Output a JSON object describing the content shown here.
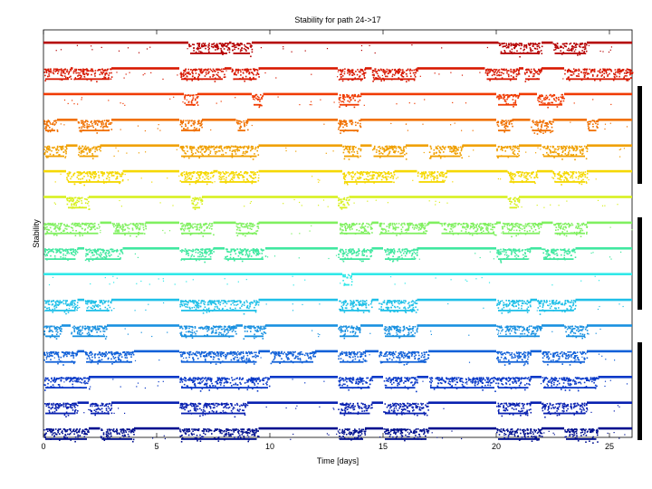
{
  "chart_data": {
    "type": "scatter",
    "title": "Stability for path 24->17",
    "xlabel": "Time [days]",
    "ylabel": "Stability",
    "xlim": [
      0,
      26
    ],
    "x_ticks": [
      0,
      5,
      10,
      15,
      20,
      25
    ],
    "x_tick_labels": [
      "0",
      "5",
      "10",
      "15",
      "20",
      "25"
    ],
    "grid": false,
    "legend": "none",
    "series": [
      {
        "color": "#b50000",
        "dropouts": [
          [
            6.4,
            8.2
          ],
          [
            8.3,
            9.2
          ],
          [
            20.1,
            22.0
          ],
          [
            22.5,
            24.0
          ]
        ]
      },
      {
        "color": "#d81800",
        "dropouts": [
          [
            0.0,
            1.2
          ],
          [
            1.3,
            3.0
          ],
          [
            6.0,
            8.0
          ],
          [
            8.3,
            9.5
          ],
          [
            13.0,
            14.2
          ],
          [
            14.5,
            16.5
          ],
          [
            19.5,
            21.0
          ],
          [
            21.2,
            22.0
          ],
          [
            23.0,
            26.0
          ]
        ]
      },
      {
        "color": "#f03a00",
        "dropouts": [
          [
            6.2,
            6.8
          ],
          [
            9.2,
            9.7
          ],
          [
            13.0,
            14.0
          ],
          [
            20.0,
            21.0
          ],
          [
            21.8,
            23.0
          ]
        ]
      },
      {
        "color": "#f07000",
        "dropouts": [
          [
            0.0,
            0.6
          ],
          [
            1.5,
            3.0
          ],
          [
            6.0,
            7.0
          ],
          [
            8.5,
            9.0
          ],
          [
            13.0,
            14.0
          ],
          [
            20.0,
            20.7
          ],
          [
            21.5,
            22.5
          ],
          [
            24.0,
            24.5
          ]
        ]
      },
      {
        "color": "#f0a000",
        "dropouts": [
          [
            0.0,
            1.0
          ],
          [
            1.5,
            2.5
          ],
          [
            6.0,
            9.5
          ],
          [
            13.2,
            14.0
          ],
          [
            14.5,
            16.0
          ],
          [
            17.0,
            18.5
          ],
          [
            20.0,
            21.0
          ],
          [
            22.0,
            24.0
          ]
        ]
      },
      {
        "color": "#f5d800",
        "dropouts": [
          [
            1.0,
            3.5
          ],
          [
            6.0,
            7.5
          ],
          [
            7.7,
            9.5
          ],
          [
            13.2,
            15.5
          ],
          [
            16.5,
            17.8
          ],
          [
            20.5,
            21.8
          ],
          [
            22.5,
            24.0
          ]
        ]
      },
      {
        "color": "#d8f020",
        "dropouts": [
          [
            1.0,
            2.0
          ],
          [
            6.5,
            7.0
          ],
          [
            13.0,
            13.5
          ],
          [
            20.5,
            21.0
          ]
        ]
      },
      {
        "color": "#80f060",
        "dropouts": [
          [
            0.0,
            2.5
          ],
          [
            3.0,
            4.5
          ],
          [
            6.0,
            7.5
          ],
          [
            8.5,
            9.5
          ],
          [
            13.0,
            14.5
          ],
          [
            14.8,
            17.0
          ],
          [
            17.5,
            20.0
          ],
          [
            20.2,
            22.0
          ],
          [
            22.5,
            24.0
          ]
        ]
      },
      {
        "color": "#40e8a0",
        "dropouts": [
          [
            0.0,
            1.5
          ],
          [
            1.8,
            3.5
          ],
          [
            6.0,
            7.5
          ],
          [
            8.0,
            9.8
          ],
          [
            13.0,
            14.5
          ],
          [
            15.0,
            16.5
          ],
          [
            20.0,
            21.5
          ],
          [
            22.0,
            23.5
          ]
        ]
      },
      {
        "color": "#30e8e8",
        "dropouts": [
          [
            13.2,
            13.6
          ]
        ]
      },
      {
        "color": "#20c0e8",
        "dropouts": [
          [
            0.0,
            1.5
          ],
          [
            1.8,
            3.0
          ],
          [
            6.0,
            9.5
          ],
          [
            13.0,
            14.5
          ],
          [
            14.8,
            16.5
          ],
          [
            20.0,
            21.5
          ],
          [
            21.8,
            23.5
          ]
        ]
      },
      {
        "color": "#1890e0",
        "dropouts": [
          [
            0.0,
            0.8
          ],
          [
            1.2,
            2.8
          ],
          [
            6.0,
            8.5
          ],
          [
            8.8,
            9.8
          ],
          [
            13.0,
            14.0
          ],
          [
            15.0,
            16.5
          ],
          [
            20.0,
            22.0
          ],
          [
            23.0,
            24.0
          ]
        ]
      },
      {
        "color": "#1060d8",
        "dropouts": [
          [
            0.0,
            1.5
          ],
          [
            1.8,
            4.0
          ],
          [
            6.0,
            9.5
          ],
          [
            10.0,
            12.0
          ],
          [
            13.0,
            14.2
          ],
          [
            14.8,
            17.0
          ],
          [
            20.0,
            21.5
          ],
          [
            22.0,
            24.0
          ]
        ]
      },
      {
        "color": "#0838c8",
        "dropouts": [
          [
            0.0,
            2.0
          ],
          [
            6.0,
            10.0
          ],
          [
            13.0,
            14.5
          ],
          [
            15.0,
            16.5
          ],
          [
            17.0,
            20.0
          ],
          [
            20.0,
            21.5
          ],
          [
            22.0,
            24.5
          ]
        ]
      },
      {
        "color": "#0820b0",
        "dropouts": [
          [
            0.0,
            1.5
          ],
          [
            2.0,
            3.0
          ],
          [
            6.0,
            9.0
          ],
          [
            13.0,
            14.5
          ],
          [
            15.0,
            17.0
          ],
          [
            20.0,
            21.5
          ],
          [
            22.0,
            24.0
          ]
        ]
      },
      {
        "color": "#00108f",
        "dropouts": [
          [
            0.0,
            2.0
          ],
          [
            2.5,
            4.0
          ],
          [
            6.0,
            9.5
          ],
          [
            13.0,
            14.2
          ],
          [
            15.0,
            17.0
          ],
          [
            20.0,
            22.0
          ],
          [
            23.0,
            24.5
          ]
        ]
      }
    ]
  }
}
